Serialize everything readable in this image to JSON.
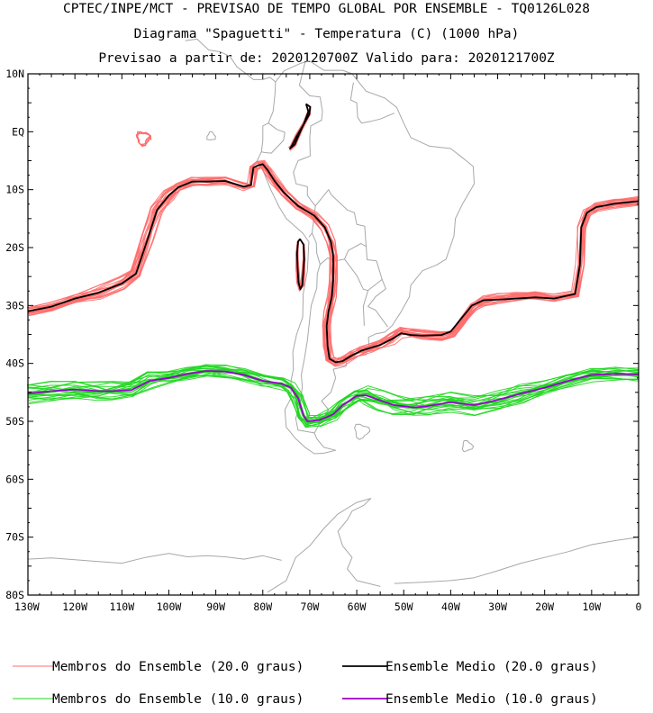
{
  "header": {
    "line1": "CPTEC/INPE/MCT - PREVISAO DE TEMPO GLOBAL POR ENSEMBLE - TQ0126L028",
    "line2": "Diagrama \"Spaguetti\" - Temperatura (C) (1000 hPa)",
    "line3": "Previsao a partir de: 2020120700Z  Valido para: 2020121700Z"
  },
  "chart_data": {
    "type": "line",
    "title": "Diagrama \"Spaguetti\" - Temperatura (C) (1000 hPa)",
    "xlabel": "",
    "ylabel": "",
    "xlim": [
      -130,
      0
    ],
    "ylim": [
      -80,
      10
    ],
    "grid": false,
    "map_background": "South America coastlines and country borders",
    "x_ticks": [
      {
        "value": -130,
        "label": "130W"
      },
      {
        "value": -120,
        "label": "120W"
      },
      {
        "value": -110,
        "label": "110W"
      },
      {
        "value": -100,
        "label": "100W"
      },
      {
        "value": -90,
        "label": "90W"
      },
      {
        "value": -80,
        "label": "80W"
      },
      {
        "value": -70,
        "label": "70W"
      },
      {
        "value": -60,
        "label": "60W"
      },
      {
        "value": -50,
        "label": "50W"
      },
      {
        "value": -40,
        "label": "40W"
      },
      {
        "value": -30,
        "label": "30W"
      },
      {
        "value": -20,
        "label": "20W"
      },
      {
        "value": -10,
        "label": "10W"
      },
      {
        "value": 0,
        "label": "0"
      }
    ],
    "y_ticks": [
      {
        "value": 10,
        "label": "10N"
      },
      {
        "value": 0,
        "label": "EQ"
      },
      {
        "value": -10,
        "label": "10S"
      },
      {
        "value": -20,
        "label": "20S"
      },
      {
        "value": -30,
        "label": "30S"
      },
      {
        "value": -40,
        "label": "40S"
      },
      {
        "value": -50,
        "label": "50S"
      },
      {
        "value": -60,
        "label": "60S"
      },
      {
        "value": -70,
        "label": "70S"
      },
      {
        "value": -80,
        "label": "80S"
      }
    ],
    "series": [
      {
        "name": "Ensemble Medio (20.0 graus)",
        "color": "#000000",
        "segments": [
          [
            [
              -130,
              -31
            ],
            [
              -125,
              -30.2
            ],
            [
              -120,
              -28.8
            ],
            [
              -115,
              -27.8
            ],
            [
              -110,
              -26.2
            ],
            [
              -107,
              -24.5
            ],
            [
              -104.5,
              -18.5
            ],
            [
              -102.5,
              -13.5
            ],
            [
              -100,
              -11
            ],
            [
              -98,
              -9.6
            ],
            [
              -95,
              -8.6
            ],
            [
              -92,
              -8.6
            ],
            [
              -88,
              -8.5
            ],
            [
              -84,
              -9.5
            ],
            [
              -82.5,
              -9.2
            ],
            [
              -82,
              -6.2
            ],
            [
              -81,
              -5.8
            ],
            [
              -80,
              -5.6
            ],
            [
              -79,
              -6.6
            ],
            [
              -77.5,
              -8.5
            ],
            [
              -75.5,
              -10.5
            ],
            [
              -72.5,
              -12.8
            ],
            [
              -69,
              -14.5
            ],
            [
              -66.8,
              -16.5
            ],
            [
              -65.5,
              -19
            ],
            [
              -65,
              -21.5
            ],
            [
              -65,
              -25.5
            ],
            [
              -65.3,
              -28.5
            ],
            [
              -66,
              -31
            ],
            [
              -66.4,
              -33.5
            ],
            [
              -66.2,
              -37
            ],
            [
              -65.8,
              -39.2
            ],
            [
              -64.5,
              -39.8
            ],
            [
              -63,
              -39.6
            ],
            [
              -61,
              -38.6
            ],
            [
              -59,
              -37.8
            ],
            [
              -57,
              -37.3
            ],
            [
              -55,
              -36.8
            ],
            [
              -52.5,
              -35.8
            ],
            [
              -50.5,
              -34.8
            ],
            [
              -48.5,
              -35.1
            ],
            [
              -46,
              -35.2
            ],
            [
              -42,
              -35.1
            ],
            [
              -40,
              -34.5
            ],
            [
              -38,
              -32.5
            ],
            [
              -35.5,
              -30
            ],
            [
              -33,
              -29.1
            ],
            [
              -30,
              -29
            ],
            [
              -26,
              -28.8
            ],
            [
              -22,
              -28.6
            ],
            [
              -18,
              -28.8
            ],
            [
              -13.5,
              -28
            ],
            [
              -12.5,
              -23
            ],
            [
              -12.2,
              -16.5
            ],
            [
              -11,
              -14
            ],
            [
              -9,
              -13
            ],
            [
              -5,
              -12.4
            ],
            [
              0,
              -12
            ]
          ],
          [
            [
              -70.8,
              4.8
            ],
            [
              -69.9,
              4.3
            ],
            [
              -70.1,
              3
            ],
            [
              -71.5,
              1
            ],
            [
              -72.8,
              -0.8
            ],
            [
              -73.8,
              -2.4
            ],
            [
              -74.2,
              -2.9
            ],
            [
              -73.2,
              -2.2
            ],
            [
              -72.3,
              -0.5
            ],
            [
              -71.2,
              1.5
            ],
            [
              -70.3,
              3.5
            ],
            [
              -70.8,
              4.8
            ]
          ],
          [
            [
              -72.1,
              -18.5
            ],
            [
              -71.3,
              -19.5
            ],
            [
              -71.2,
              -22
            ],
            [
              -71.4,
              -24.5
            ],
            [
              -71.6,
              -26.5
            ],
            [
              -72,
              -27.2
            ],
            [
              -72.4,
              -26
            ],
            [
              -72.6,
              -23.5
            ],
            [
              -72.7,
              -21
            ],
            [
              -72.5,
              -19
            ],
            [
              -72.1,
              -18.5
            ]
          ]
        ]
      },
      {
        "name": "Membros do Ensemble (20.0 graus)",
        "color": "#ff6b6b",
        "members": 20,
        "note": "members spread around the ensemble mean; isolated small contour near 105W 1S"
      },
      {
        "name": "Ensemble Medio (10.0 graus)",
        "color": "#9900cc",
        "segments": [
          [
            [
              -130,
              -45.2
            ],
            [
              -125,
              -44.8
            ],
            [
              -120,
              -44.5
            ],
            [
              -115,
              -44.8
            ],
            [
              -112,
              -44.8
            ],
            [
              -108,
              -44.6
            ],
            [
              -104,
              -43
            ],
            [
              -100,
              -42.5
            ],
            [
              -96,
              -41.8
            ],
            [
              -92,
              -41.3
            ],
            [
              -88,
              -41.4
            ],
            [
              -84,
              -42
            ],
            [
              -80,
              -43
            ],
            [
              -76,
              -43.5
            ],
            [
              -74,
              -44.2
            ],
            [
              -72.5,
              -46
            ],
            [
              -71.3,
              -49
            ],
            [
              -70.5,
              -50
            ],
            [
              -68,
              -49.8
            ],
            [
              -65,
              -48.8
            ],
            [
              -63,
              -47.2
            ],
            [
              -60,
              -45.6
            ],
            [
              -58,
              -45.5
            ],
            [
              -55,
              -46.4
            ],
            [
              -52,
              -47.2
            ],
            [
              -48,
              -47.6
            ],
            [
              -45,
              -47.4
            ],
            [
              -40,
              -46.7
            ],
            [
              -35,
              -47.2
            ],
            [
              -30,
              -46.3
            ],
            [
              -25,
              -45.2
            ],
            [
              -20,
              -44.2
            ],
            [
              -15,
              -43
            ],
            [
              -10,
              -42
            ],
            [
              -5,
              -41.8
            ],
            [
              0,
              -41.9
            ]
          ]
        ]
      },
      {
        "name": "Membros do Ensemble (10.0 graus)",
        "color": "#1ed61e",
        "members": 20,
        "note": "members spread around the ensemble mean"
      }
    ],
    "legend": {
      "placement": "bottom",
      "entries": [
        {
          "label": "Membros do Ensemble (20.0 graus)",
          "color": "#ff6b6b"
        },
        {
          "label": "Ensemble Medio (20.0 graus)",
          "color": "#000000"
        },
        {
          "label": "Membros do Ensemble (10.0 graus)",
          "color": "#1ed61e"
        },
        {
          "label": "Ensemble Medio (10.0 graus)",
          "color": "#9900cc"
        }
      ]
    }
  }
}
